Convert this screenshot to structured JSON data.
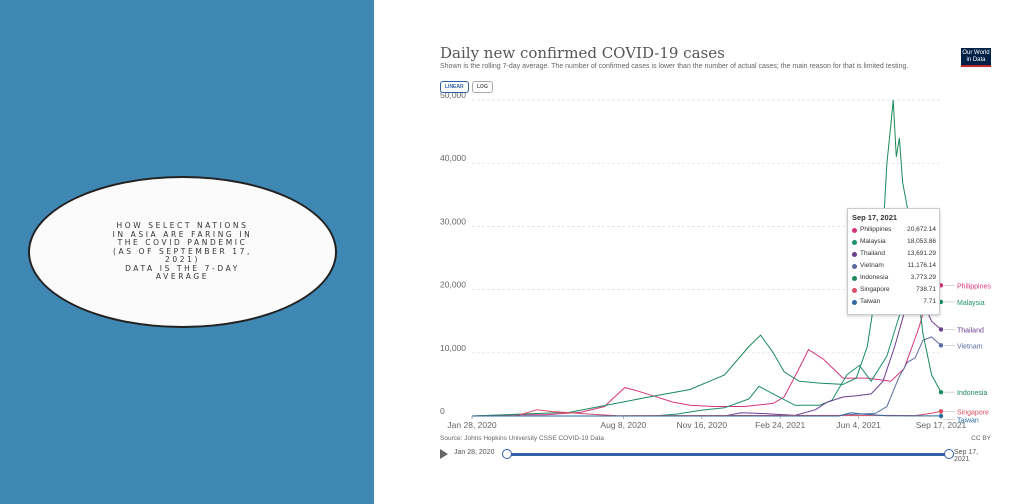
{
  "slide": {
    "lines": [
      "How select nations",
      "in Asia are faring in",
      "the COVID pandemic",
      "(as of September 17,",
      "2021)",
      "data is the 7-day",
      "average"
    ]
  },
  "logo": {
    "line1": "Our World",
    "line2": "in Data"
  },
  "controls": {
    "linear": "LINEAR",
    "log": "LOG"
  },
  "footer": {
    "source": "Source: Johns Hopkins University CSSE COVID-19 Data",
    "license": "CC BY"
  },
  "timeline": {
    "start": "Jan 28, 2020",
    "end": "Sep 17, 2021"
  },
  "tooltip": {
    "date": "Sep 17, 2021",
    "rows": [
      {
        "name": "Philippines",
        "value": "20,672.14",
        "color": "#d6357f"
      },
      {
        "name": "Malaysia",
        "value": "18,053.86",
        "color": "#1c8f6b"
      },
      {
        "name": "Thailand",
        "value": "13,691.29",
        "color": "#6d3e91"
      },
      {
        "name": "Vietnam",
        "value": "11,176.14",
        "color": "#5b6b9f"
      },
      {
        "name": "Indonesia",
        "value": "3,773.29",
        "color": "#1a8a5a"
      },
      {
        "name": "Singapore",
        "value": "738.71",
        "color": "#d94e63"
      },
      {
        "name": "Taiwan",
        "value": "7.71",
        "color": "#2b6aa3"
      }
    ]
  },
  "chart_data": {
    "type": "line",
    "title": "Daily new confirmed COVID-19 cases",
    "subtitle": "Shown is the rolling 7-day average. The number of confirmed cases is lower than the number of actual cases; the main reason for that is limited testing.",
    "y_range": [
      0,
      50000
    ],
    "y_ticks": [
      0,
      10000,
      20000,
      30000,
      40000,
      50000
    ],
    "y_tick_labels": [
      "0",
      "10,000",
      "20,000",
      "30,000",
      "40,000",
      "50,000"
    ],
    "x_range": [
      "2020-01-28",
      "2021-09-17"
    ],
    "x_ticks": [
      "2020-01-28",
      "2020-08-08",
      "2020-11-16",
      "2021-02-24",
      "2021-06-04",
      "2021-09-17"
    ],
    "x_tick_labels": [
      "Jan 28, 2020",
      "Aug 8, 2020",
      "Nov 16, 2020",
      "Feb 24, 2021",
      "Jun 4, 2021",
      "Sep 17, 2021"
    ],
    "grid": true,
    "legend": "right end labels",
    "series": [
      {
        "name": "Philippines",
        "color": "#d6357f",
        "dates": [
          "2020-01-28",
          "2020-03-20",
          "2020-05-01",
          "2020-06-15",
          "2020-07-15",
          "2020-08-01",
          "2020-08-10",
          "2020-08-25",
          "2020-09-15",
          "2020-10-10",
          "2020-11-01",
          "2020-12-01",
          "2021-01-10",
          "2021-02-15",
          "2021-03-01",
          "2021-03-20",
          "2021-04-01",
          "2021-04-20",
          "2021-05-15",
          "2021-06-15",
          "2021-07-15",
          "2021-08-01",
          "2021-08-20",
          "2021-09-05",
          "2021-09-10",
          "2021-09-17"
        ],
        "values": [
          0,
          200,
          200,
          600,
          1500,
          3500,
          4500,
          4000,
          3200,
          2200,
          1700,
          1500,
          1500,
          2000,
          3000,
          7500,
          10500,
          9000,
          6000,
          6000,
          5500,
          7500,
          14000,
          21000,
          20500,
          20672
        ]
      },
      {
        "name": "Malaysia",
        "color": "#1c8f6b",
        "dates": [
          "2020-01-28",
          "2020-09-15",
          "2020-10-15",
          "2020-11-15",
          "2020-12-15",
          "2021-01-15",
          "2021-01-28",
          "2021-02-15",
          "2021-03-15",
          "2021-04-15",
          "2021-05-01",
          "2021-05-20",
          "2021-06-05",
          "2021-06-20",
          "2021-07-10",
          "2021-07-25",
          "2021-08-10",
          "2021-08-25",
          "2021-09-05",
          "2021-09-17"
        ],
        "values": [
          0,
          0,
          300,
          900,
          1300,
          2700,
          4700,
          3500,
          1700,
          1700,
          2500,
          6500,
          8000,
          5500,
          9500,
          15500,
          21000,
          22000,
          20000,
          18054
        ]
      },
      {
        "name": "Thailand",
        "color": "#6d3e91",
        "dates": [
          "2020-01-28",
          "2020-12-15",
          "2021-01-05",
          "2021-02-01",
          "2021-03-15",
          "2021-04-10",
          "2021-04-25",
          "2021-05-15",
          "2021-06-01",
          "2021-06-20",
          "2021-07-05",
          "2021-07-20",
          "2021-08-05",
          "2021-08-15",
          "2021-08-25",
          "2021-09-05",
          "2021-09-17"
        ],
        "values": [
          0,
          0,
          500,
          400,
          100,
          1000,
          2200,
          3000,
          3200,
          3500,
          5500,
          11000,
          18000,
          21000,
          18000,
          15000,
          13691
        ]
      },
      {
        "name": "Vietnam",
        "color": "#5b6b9f",
        "dates": [
          "2020-01-28",
          "2021-05-01",
          "2021-06-01",
          "2021-06-25",
          "2021-07-10",
          "2021-07-25",
          "2021-08-05",
          "2021-08-15",
          "2021-08-25",
          "2021-09-05",
          "2021-09-17"
        ],
        "values": [
          0,
          0,
          300,
          400,
          1500,
          6000,
          8500,
          9200,
          12000,
          12500,
          11176
        ]
      },
      {
        "name": "Indonesia",
        "color": "#1a8a5a",
        "dates": [
          "2020-01-28",
          "2020-06-01",
          "2020-09-01",
          "2020-11-01",
          "2020-12-15",
          "2021-01-15",
          "2021-01-30",
          "2021-02-15",
          "2021-03-01",
          "2021-03-20",
          "2021-04-15",
          "2021-05-15",
          "2021-06-01",
          "2021-06-15",
          "2021-06-25",
          "2021-07-05",
          "2021-07-10",
          "2021-07-15",
          "2021-07-18",
          "2021-07-22",
          "2021-07-26",
          "2021-07-30",
          "2021-08-05",
          "2021-08-15",
          "2021-08-25",
          "2021-09-05",
          "2021-09-17"
        ],
        "values": [
          0,
          600,
          2800,
          4200,
          6500,
          11000,
          12800,
          10000,
          7000,
          5500,
          5200,
          5000,
          6000,
          11000,
          19000,
          29000,
          40000,
          46000,
          50000,
          41000,
          44000,
          37000,
          33000,
          23000,
          13000,
          6500,
          3773
        ]
      },
      {
        "name": "Singapore",
        "color": "#d94e63",
        "dates": [
          "2020-01-28",
          "2020-03-25",
          "2020-04-20",
          "2020-05-10",
          "2020-06-01",
          "2020-07-01",
          "2020-08-01",
          "2021-07-15",
          "2021-08-15",
          "2021-09-05",
          "2021-09-17"
        ],
        "values": [
          0,
          50,
          1000,
          700,
          500,
          250,
          50,
          100,
          60,
          450,
          739
        ]
      },
      {
        "name": "Taiwan",
        "color": "#2b6aa3",
        "dates": [
          "2020-01-28",
          "2021-05-10",
          "2021-05-25",
          "2021-06-10",
          "2021-07-10",
          "2021-08-10",
          "2021-09-17"
        ],
        "values": [
          0,
          0,
          500,
          300,
          30,
          10,
          8
        ]
      }
    ]
  }
}
